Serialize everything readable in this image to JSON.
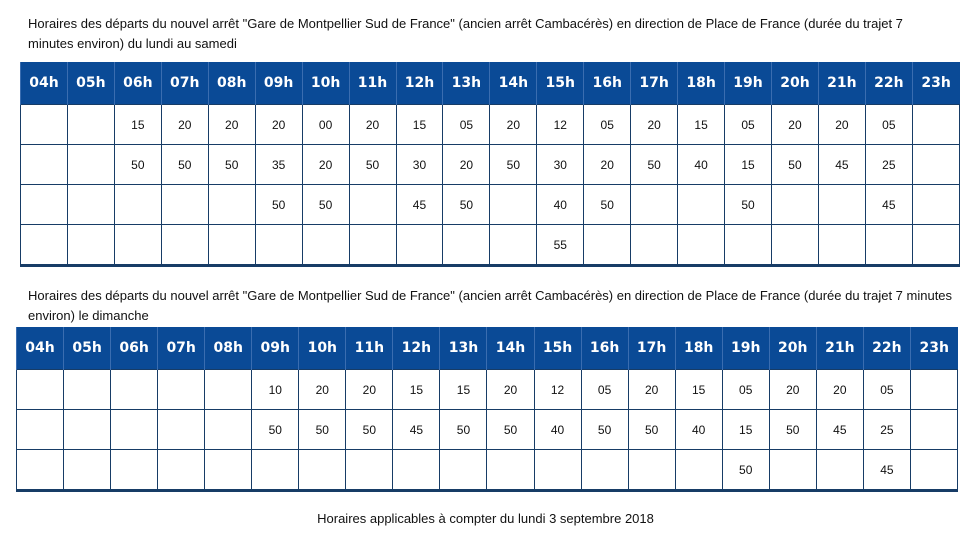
{
  "section1": {
    "caption": "Horaires des départs du nouvel arrêt \"Gare de Montpellier Sud de France\" (ancien arrêt Cambacérès) en direction de Place de France (durée du trajet 7 minutes environ) du lundi au samedi",
    "hours": [
      "04h",
      "05h",
      "06h",
      "07h",
      "08h",
      "09h",
      "10h",
      "11h",
      "12h",
      "13h",
      "14h",
      "15h",
      "16h",
      "17h",
      "18h",
      "19h",
      "20h",
      "21h",
      "22h",
      "23h"
    ],
    "rows": [
      [
        "",
        "",
        "15",
        "20",
        "20",
        "20",
        "00",
        "20",
        "15",
        "05",
        "20",
        "12",
        "05",
        "20",
        "15",
        "05",
        "20",
        "20",
        "05",
        ""
      ],
      [
        "",
        "",
        "50",
        "50",
        "50",
        "35",
        "20",
        "50",
        "30",
        "20",
        "50",
        "30",
        "20",
        "50",
        "40",
        "15",
        "50",
        "45",
        "25",
        ""
      ],
      [
        "",
        "",
        "",
        "",
        "",
        "50",
        "50",
        "",
        "45",
        "50",
        "",
        "40",
        "50",
        "",
        "",
        "50",
        "",
        "",
        "45",
        ""
      ],
      [
        "",
        "",
        "",
        "",
        "",
        "",
        "",
        "",
        "",
        "",
        "",
        "55",
        "",
        "",
        "",
        "",
        "",
        "",
        "",
        ""
      ]
    ]
  },
  "section2": {
    "caption": "Horaires des départs du nouvel arrêt \"Gare de Montpellier Sud de France\" (ancien arrêt Cambacérès) en direction de Place de France (durée du trajet 7 minutes environ) le dimanche",
    "hours": [
      "04h",
      "05h",
      "06h",
      "07h",
      "08h",
      "09h",
      "10h",
      "11h",
      "12h",
      "13h",
      "14h",
      "15h",
      "16h",
      "17h",
      "18h",
      "19h",
      "20h",
      "21h",
      "22h",
      "23h"
    ],
    "rows": [
      [
        "",
        "",
        "",
        "",
        "",
        "10",
        "20",
        "20",
        "15",
        "15",
        "20",
        "12",
        "05",
        "20",
        "15",
        "05",
        "20",
        "20",
        "05",
        ""
      ],
      [
        "",
        "",
        "",
        "",
        "",
        "50",
        "50",
        "50",
        "45",
        "50",
        "50",
        "40",
        "50",
        "50",
        "40",
        "15",
        "50",
        "45",
        "25",
        ""
      ],
      [
        "",
        "",
        "",
        "",
        "",
        "",
        "",
        "",
        "",
        "",
        "",
        "",
        "",
        "",
        "",
        "50",
        "",
        "",
        "45",
        ""
      ]
    ]
  },
  "footer": "Horaires applicables à compter du lundi 3 septembre 2018",
  "colors": {
    "header_bg": "#0a4a96",
    "border": "#173c66"
  }
}
